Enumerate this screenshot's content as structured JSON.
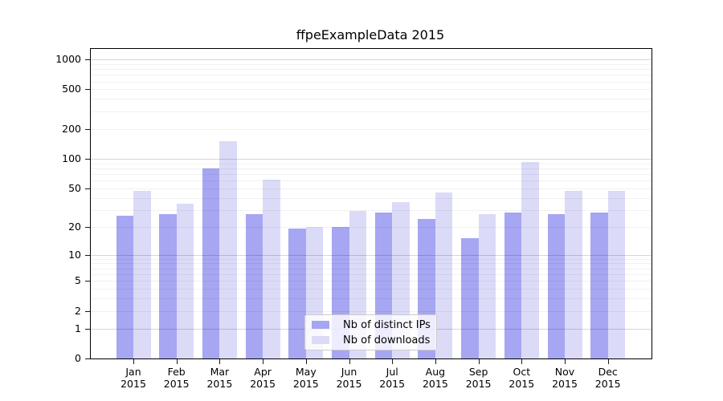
{
  "title": "ffpeExampleData 2015",
  "chart_data": {
    "type": "bar",
    "title": "ffpeExampleData 2015",
    "categories": [
      "Jan",
      "Feb",
      "Mar",
      "Apr",
      "May",
      "Jun",
      "Jul",
      "Aug",
      "Sep",
      "Oct",
      "Nov",
      "Dec"
    ],
    "year_label": "2015",
    "series": [
      {
        "name": "Nb of distinct IPs",
        "color": "#a6a6f2",
        "values": [
          26,
          27,
          80,
          27,
          19,
          20,
          28,
          24,
          15,
          28,
          27,
          28
        ]
      },
      {
        "name": "Nb of downloads",
        "color": "#dbdbf8",
        "values": [
          47,
          35,
          150,
          61,
          20,
          29,
          36,
          45,
          27,
          93,
          47,
          47
        ]
      }
    ],
    "y_scale": "log10(value+1)",
    "y_ticks": [
      0,
      1,
      2,
      5,
      10,
      20,
      50,
      100,
      200,
      500,
      1000
    ],
    "ylim": [
      0,
      1200
    ],
    "grid": "horizontal",
    "legend_position": "lower center",
    "background_color": "#ffffff"
  }
}
